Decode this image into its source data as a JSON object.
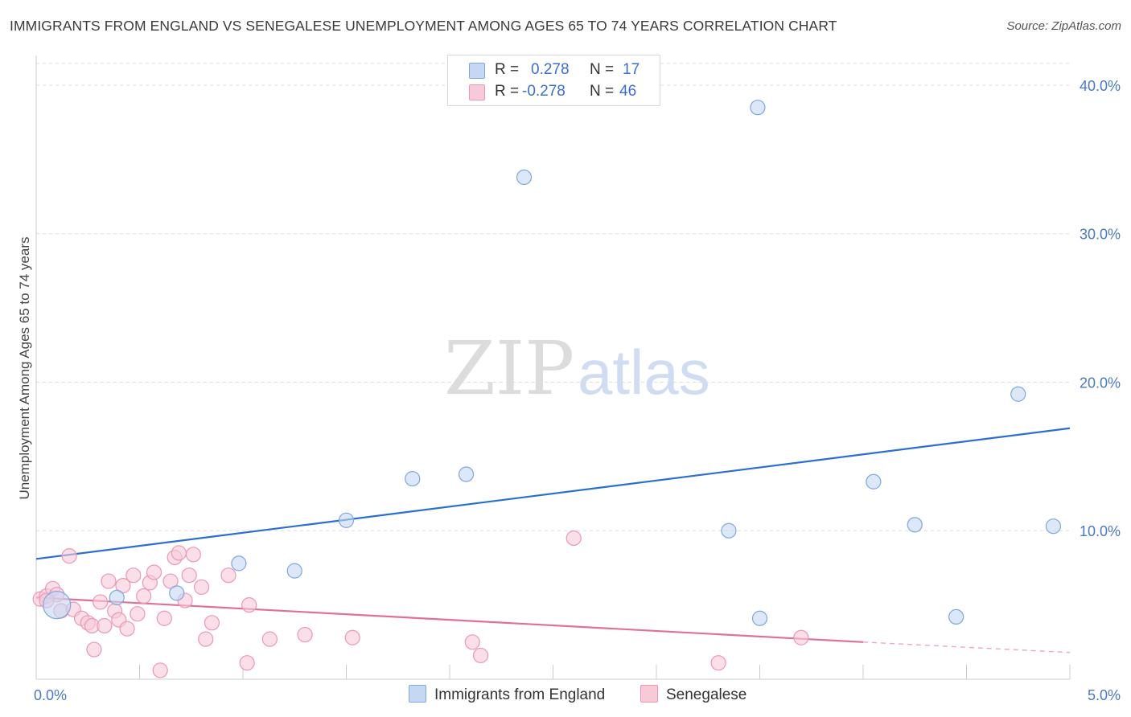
{
  "header": {
    "title": "IMMIGRANTS FROM ENGLAND VS SENEGALESE UNEMPLOYMENT AMONG AGES 65 TO 74 YEARS CORRELATION CHART",
    "source": "Source: ZipAtlas.com"
  },
  "watermark": {
    "zip": "ZIP",
    "atlas": "atlas"
  },
  "legend": {
    "rows": [
      {
        "r_label": "R =",
        "r_value": "0.278",
        "n_label": "N =",
        "n_value": "17",
        "color": "#aac7ef"
      },
      {
        "r_label": "R =",
        "r_value": "-0.278",
        "n_label": "N =",
        "n_value": "46",
        "color": "#f7b8cb"
      }
    ]
  },
  "bottom_legend": {
    "england": "Immigrants from England",
    "senegalese": "Senegalese"
  },
  "colors": {
    "blue_fill": "#c4d8f4",
    "blue_stroke": "#7ea6df",
    "blue_line": "#2a6fd0",
    "pink_fill": "#f8cad8",
    "pink_stroke": "#ec97b3",
    "pink_line": "#e0709a",
    "grid": "#dddddd"
  },
  "chart_data": {
    "type": "scatter",
    "title": "IMMIGRANTS FROM ENGLAND VS SENEGALESE UNEMPLOYMENT AMONG AGES 65 TO 74 YEARS CORRELATION CHART",
    "xlabel": "",
    "ylabel": "Unemployment Among Ages 65 to 74 years",
    "xlim": [
      0,
      5
    ],
    "ylim": [
      0,
      42
    ],
    "x_tick_labels": [
      {
        "value": 0,
        "label": "0.0%"
      },
      {
        "value": 5,
        "label": "5.0%"
      }
    ],
    "y_tick_labels": [
      {
        "value": 10,
        "label": "10.0%"
      },
      {
        "value": 20,
        "label": "20.0%"
      },
      {
        "value": 30,
        "label": "30.0%"
      },
      {
        "value": 40,
        "label": "40.0%"
      }
    ],
    "series": [
      {
        "name": "Immigrants from England",
        "points": [
          [
            0.1,
            5.0
          ],
          [
            0.39,
            5.5
          ],
          [
            0.68,
            5.8
          ],
          [
            0.98,
            7.8
          ],
          [
            1.25,
            7.3
          ],
          [
            1.5,
            10.7
          ],
          [
            1.82,
            13.5
          ],
          [
            2.08,
            13.8
          ],
          [
            2.36,
            33.8
          ],
          [
            3.5,
            4.1
          ],
          [
            3.35,
            10.0
          ],
          [
            3.49,
            38.5
          ],
          [
            4.05,
            13.3
          ],
          [
            4.25,
            10.4
          ],
          [
            4.45,
            4.2
          ],
          [
            4.75,
            19.2
          ],
          [
            4.92,
            10.3
          ]
        ],
        "trend": {
          "x": [
            0,
            5
          ],
          "y": [
            8.1,
            16.9
          ]
        }
      },
      {
        "name": "Senegalese",
        "points": [
          [
            0.02,
            5.4
          ],
          [
            0.05,
            5.6
          ],
          [
            0.08,
            6.1
          ],
          [
            0.1,
            5.7
          ],
          [
            0.12,
            4.6
          ],
          [
            0.16,
            8.3
          ],
          [
            0.18,
            4.7
          ],
          [
            0.22,
            4.1
          ],
          [
            0.25,
            3.8
          ],
          [
            0.27,
            3.6
          ],
          [
            0.28,
            2.0
          ],
          [
            0.31,
            5.2
          ],
          [
            0.33,
            3.6
          ],
          [
            0.35,
            6.6
          ],
          [
            0.38,
            4.6
          ],
          [
            0.4,
            4.0
          ],
          [
            0.42,
            6.3
          ],
          [
            0.44,
            3.4
          ],
          [
            0.47,
            7.0
          ],
          [
            0.49,
            4.4
          ],
          [
            0.52,
            5.6
          ],
          [
            0.55,
            6.5
          ],
          [
            0.57,
            7.2
          ],
          [
            0.6,
            0.6
          ],
          [
            0.62,
            4.1
          ],
          [
            0.65,
            6.6
          ],
          [
            0.67,
            8.2
          ],
          [
            0.69,
            8.5
          ],
          [
            0.72,
            5.3
          ],
          [
            0.74,
            7.0
          ],
          [
            0.76,
            8.4
          ],
          [
            0.8,
            6.2
          ],
          [
            0.82,
            2.7
          ],
          [
            0.85,
            3.8
          ],
          [
            0.93,
            7.0
          ],
          [
            1.02,
            1.1
          ],
          [
            1.03,
            5.0
          ],
          [
            1.13,
            2.7
          ],
          [
            1.3,
            3.0
          ],
          [
            1.53,
            2.8
          ],
          [
            2.11,
            2.5
          ],
          [
            2.15,
            1.6
          ],
          [
            2.6,
            9.5
          ],
          [
            3.3,
            1.1
          ],
          [
            3.7,
            2.8
          ],
          [
            0.05,
            5.3
          ]
        ],
        "trend": {
          "x": [
            0,
            4.0
          ],
          "y": [
            5.5,
            2.5
          ]
        },
        "trend_dashed": {
          "x": [
            4.0,
            5.0
          ],
          "y": [
            2.5,
            1.8
          ]
        }
      }
    ]
  }
}
